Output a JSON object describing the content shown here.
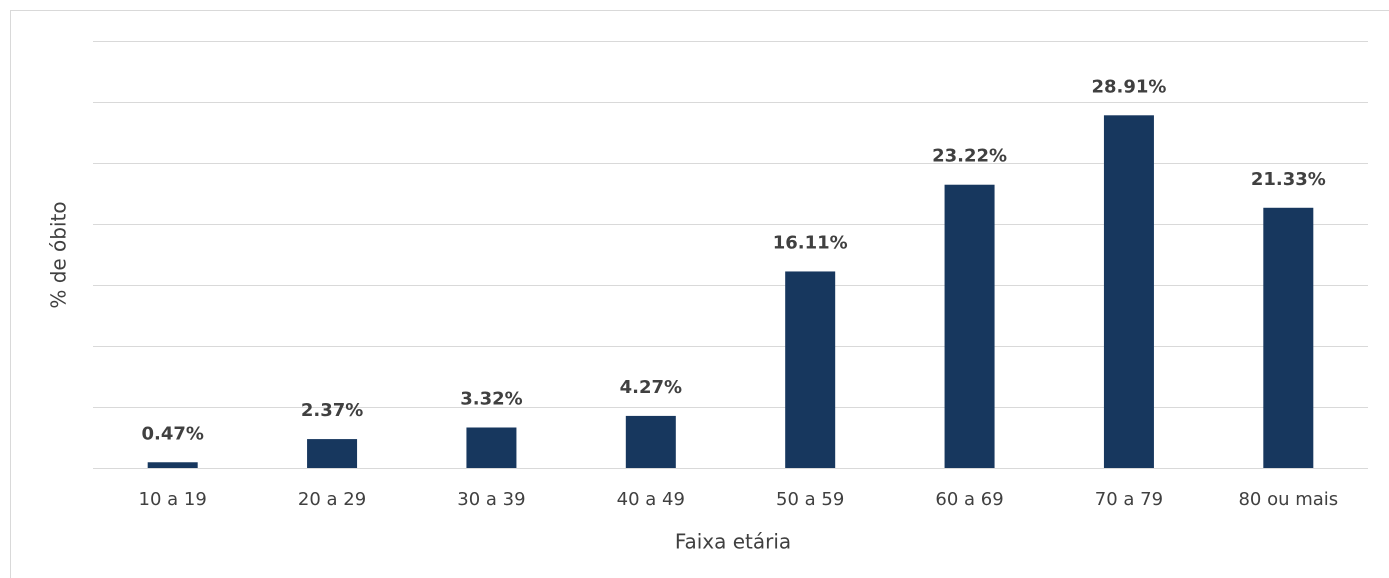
{
  "chart_data": {
    "type": "bar",
    "x_label": "Faixa etária",
    "y_label": "% de óbito",
    "categories": [
      "10 a 19",
      "20 a 29",
      "30 a 39",
      "40 a 49",
      "50 a 59",
      "60 a 69",
      "70 a 79",
      "80 ou mais"
    ],
    "values": [
      0.47,
      2.37,
      3.32,
      4.27,
      16.11,
      23.22,
      28.91,
      21.33
    ],
    "value_labels": [
      "0.47%",
      "2.37%",
      "3.32%",
      "4.27%",
      "16.11%",
      "23.22%",
      "28.91%",
      "21.33%"
    ],
    "color": "#17375e",
    "ylim": [
      0,
      35
    ],
    "yticks": [
      0,
      5,
      10,
      15,
      20,
      25,
      30,
      35
    ],
    "grid": true
  }
}
